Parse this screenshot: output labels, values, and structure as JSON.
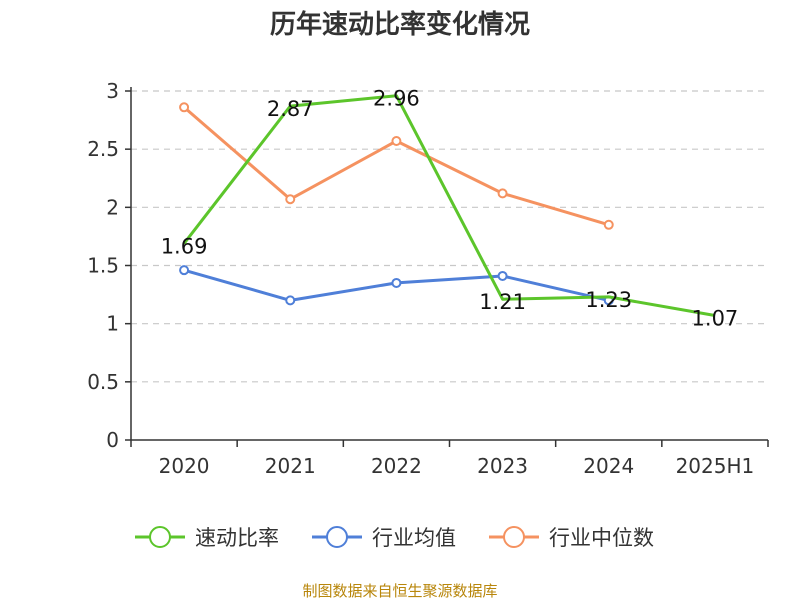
{
  "chart_data": {
    "type": "line",
    "title": "历年速动比率变化情况",
    "categories": [
      "2020",
      "2021",
      "2022",
      "2023",
      "2024",
      "2025H1"
    ],
    "ylim": [
      0,
      3
    ],
    "yticks": [
      "0",
      "0.5",
      "1",
      "1.5",
      "2",
      "2.5",
      "3"
    ],
    "grid": true,
    "legend_position": "bottom",
    "series": [
      {
        "name": "速动比率",
        "color": "#5cc52b",
        "values": [
          1.69,
          2.87,
          2.96,
          1.21,
          1.23,
          1.07
        ],
        "labels": [
          "1.69",
          "2.87",
          "2.96",
          "1.21",
          "1.23",
          "1.07"
        ]
      },
      {
        "name": "行业均值",
        "color": "#4f7fd8",
        "values": [
          1.46,
          1.2,
          1.35,
          1.41,
          1.2,
          null
        ]
      },
      {
        "name": "行业中位数",
        "color": "#f59260",
        "values": [
          2.86,
          2.07,
          2.57,
          2.12,
          1.85,
          null
        ]
      }
    ]
  },
  "source": "制图数据来自恒生聚源数据库"
}
